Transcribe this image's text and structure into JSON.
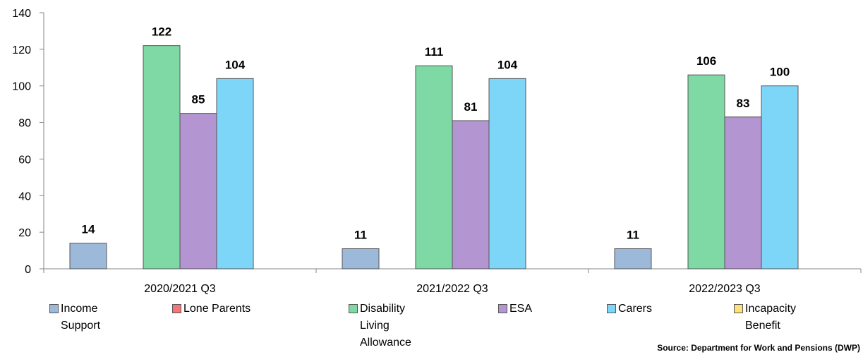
{
  "chart_data": {
    "type": "bar",
    "categories": [
      "2020/2021 Q3",
      "2021/2022 Q3",
      "2022/2023 Q3"
    ],
    "series": [
      {
        "name": "Income Support",
        "color": "#9db9d9",
        "values": [
          14,
          11,
          11
        ]
      },
      {
        "name": "Lone Parents",
        "color": "#f2767a",
        "values": [
          null,
          null,
          null
        ]
      },
      {
        "name": "Disability Living Allowance",
        "color": "#7fd9a5",
        "values": [
          122,
          111,
          106
        ]
      },
      {
        "name": "ESA",
        "color": "#b295d1",
        "values": [
          85,
          81,
          83
        ]
      },
      {
        "name": "Carers",
        "color": "#7dd6f8",
        "values": [
          104,
          104,
          100
        ]
      },
      {
        "name": "Incapacity Benefit",
        "color": "#ffe07a",
        "values": [
          null,
          null,
          null
        ]
      }
    ],
    "ylim": [
      0,
      140
    ],
    "yticks": [
      0,
      20,
      40,
      60,
      80,
      100,
      120,
      140
    ],
    "legend_position": "bottom",
    "data_labels": true
  },
  "legend": [
    {
      "lines": [
        "Income",
        "Support"
      ]
    },
    {
      "lines": [
        "Lone Parents"
      ]
    },
    {
      "lines": [
        "Disability",
        "Living",
        "Allowance"
      ]
    },
    {
      "lines": [
        "ESA"
      ]
    },
    {
      "lines": [
        "Carers"
      ]
    },
    {
      "lines": [
        "Incapacity",
        "Benefit"
      ]
    }
  ],
  "source": "Source: Department for Work and Pensions (DWP)"
}
